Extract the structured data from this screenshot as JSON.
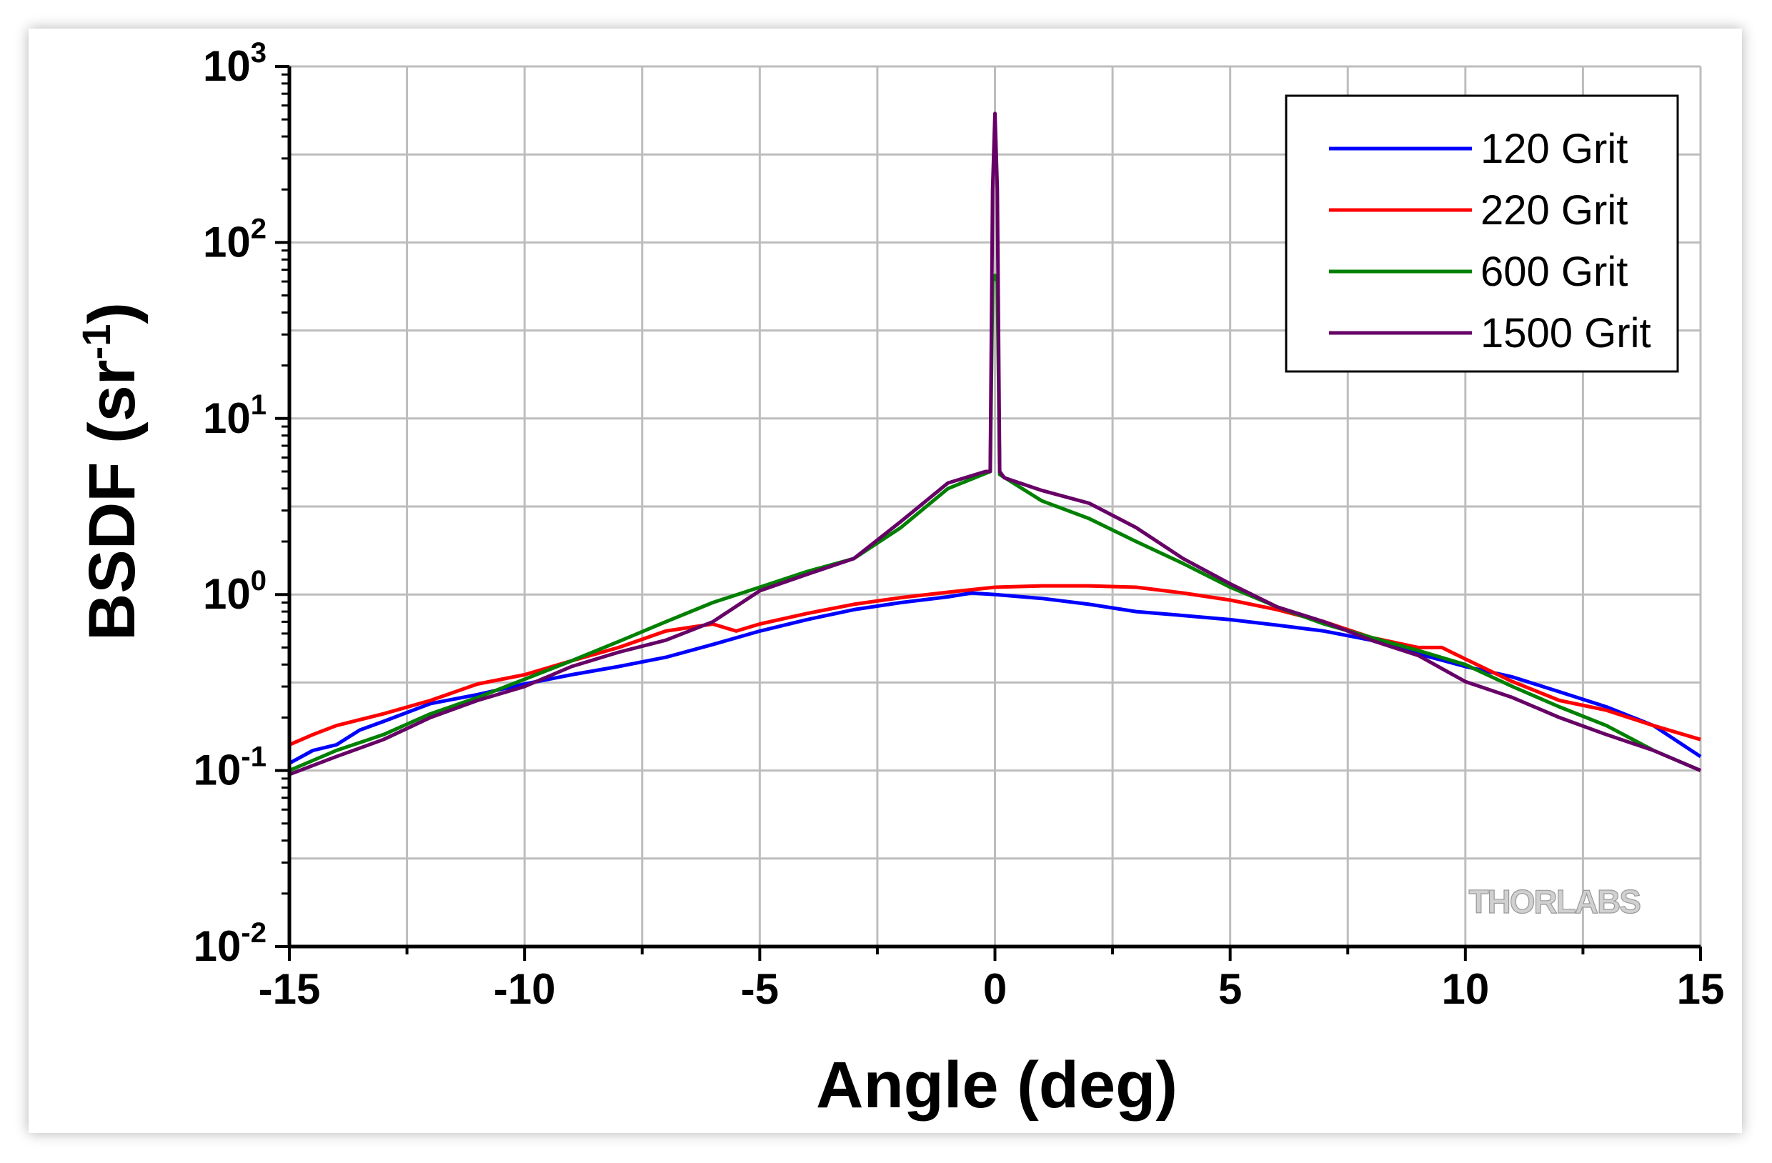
{
  "chart_data": {
    "type": "line",
    "xlabel": "Angle (deg)",
    "ylabel_main": "BSDF (sr",
    "ylabel_sup": "-1",
    "ylabel_close": ")",
    "xlim": [
      -15,
      15
    ],
    "ylim": [
      0.01,
      1000
    ],
    "yscale": "log",
    "grid": true,
    "legend_position": "top-right",
    "xticks": [
      {
        "v": -15,
        "label": "-15"
      },
      {
        "v": -10,
        "label": "-10"
      },
      {
        "v": -5,
        "label": "-5"
      },
      {
        "v": 0,
        "label": "0"
      },
      {
        "v": 5,
        "label": "5"
      },
      {
        "v": 10,
        "label": "10"
      },
      {
        "v": 15,
        "label": "15"
      }
    ],
    "yticks": [
      {
        "v": 0.01,
        "base": "10",
        "exp": "-2"
      },
      {
        "v": 0.1,
        "base": "10",
        "exp": "-1"
      },
      {
        "v": 1,
        "base": "10",
        "exp": "0"
      },
      {
        "v": 10,
        "base": "10",
        "exp": "1"
      },
      {
        "v": 100,
        "base": "10",
        "exp": "2"
      },
      {
        "v": 1000,
        "base": "10",
        "exp": "3"
      }
    ],
    "series": [
      {
        "name": "120 Grit",
        "color": "#0000ff",
        "x": [
          -15,
          -14.5,
          -14,
          -13.5,
          -13,
          -12,
          -11,
          -10,
          -9,
          -8,
          -7,
          -6,
          -5,
          -4,
          -3,
          -2,
          -1,
          -0.5,
          0,
          1,
          2,
          3,
          4,
          5,
          6,
          7,
          8,
          9,
          10,
          11,
          12,
          13,
          14,
          15
        ],
        "y": [
          0.11,
          0.13,
          0.14,
          0.17,
          0.19,
          0.24,
          0.27,
          0.31,
          0.35,
          0.39,
          0.44,
          0.52,
          0.62,
          0.72,
          0.82,
          0.9,
          0.97,
          1.02,
          1.0,
          0.95,
          0.88,
          0.8,
          0.76,
          0.72,
          0.67,
          0.62,
          0.55,
          0.46,
          0.39,
          0.34,
          0.28,
          0.23,
          0.18,
          0.12
        ]
      },
      {
        "name": "220 Grit",
        "color": "#ff0000",
        "x": [
          -15,
          -14.5,
          -14,
          -13,
          -12,
          -11,
          -10,
          -9,
          -8,
          -7,
          -6,
          -5.5,
          -5,
          -4,
          -3,
          -2,
          -1,
          0,
          1,
          2,
          3,
          4,
          5,
          6,
          7,
          8,
          9,
          9.5,
          10,
          11,
          12,
          13,
          14,
          15
        ],
        "y": [
          0.14,
          0.16,
          0.18,
          0.21,
          0.25,
          0.31,
          0.35,
          0.42,
          0.5,
          0.62,
          0.68,
          0.62,
          0.68,
          0.78,
          0.88,
          0.96,
          1.03,
          1.1,
          1.12,
          1.12,
          1.1,
          1.02,
          0.93,
          0.82,
          0.7,
          0.57,
          0.5,
          0.5,
          0.43,
          0.32,
          0.25,
          0.22,
          0.18,
          0.15
        ]
      },
      {
        "name": "600 Grit",
        "color": "#008000",
        "x": [
          -15,
          -14,
          -13,
          -12,
          -11,
          -10,
          -9,
          -8,
          -7,
          -6,
          -5,
          -4,
          -3,
          -2,
          -1,
          -0.1,
          -0.05,
          0,
          0.05,
          0.1,
          1,
          2,
          3,
          4,
          5,
          6,
          7,
          8,
          9,
          10,
          11,
          12,
          13,
          14,
          15
        ],
        "y": [
          0.1,
          0.13,
          0.16,
          0.21,
          0.26,
          0.33,
          0.42,
          0.54,
          0.7,
          0.9,
          1.1,
          1.35,
          1.6,
          2.4,
          4.0,
          5.0,
          60,
          65,
          60,
          4.8,
          3.4,
          2.7,
          2.0,
          1.5,
          1.1,
          0.85,
          0.68,
          0.57,
          0.48,
          0.4,
          0.3,
          0.23,
          0.18,
          0.13,
          0.1
        ]
      },
      {
        "name": "1500 Grit",
        "color": "#660066",
        "x": [
          -15,
          -14,
          -13,
          -12,
          -11,
          -10,
          -9,
          -8,
          -7,
          -6,
          -5,
          -4,
          -3,
          -2,
          -1,
          -0.2,
          -0.1,
          -0.05,
          0,
          0.05,
          0.1,
          0.2,
          1,
          2,
          3,
          4,
          5,
          6,
          7,
          8,
          9,
          10,
          11,
          12,
          13,
          14,
          15
        ],
        "y": [
          0.095,
          0.12,
          0.15,
          0.2,
          0.25,
          0.3,
          0.39,
          0.47,
          0.55,
          0.7,
          1.05,
          1.3,
          1.6,
          2.6,
          4.3,
          5.0,
          5.0,
          200,
          540,
          200,
          5.0,
          4.6,
          3.9,
          3.3,
          2.4,
          1.6,
          1.15,
          0.85,
          0.7,
          0.55,
          0.45,
          0.32,
          0.26,
          0.2,
          0.16,
          0.13,
          0.1
        ]
      }
    ]
  },
  "watermark": "THORLABS"
}
